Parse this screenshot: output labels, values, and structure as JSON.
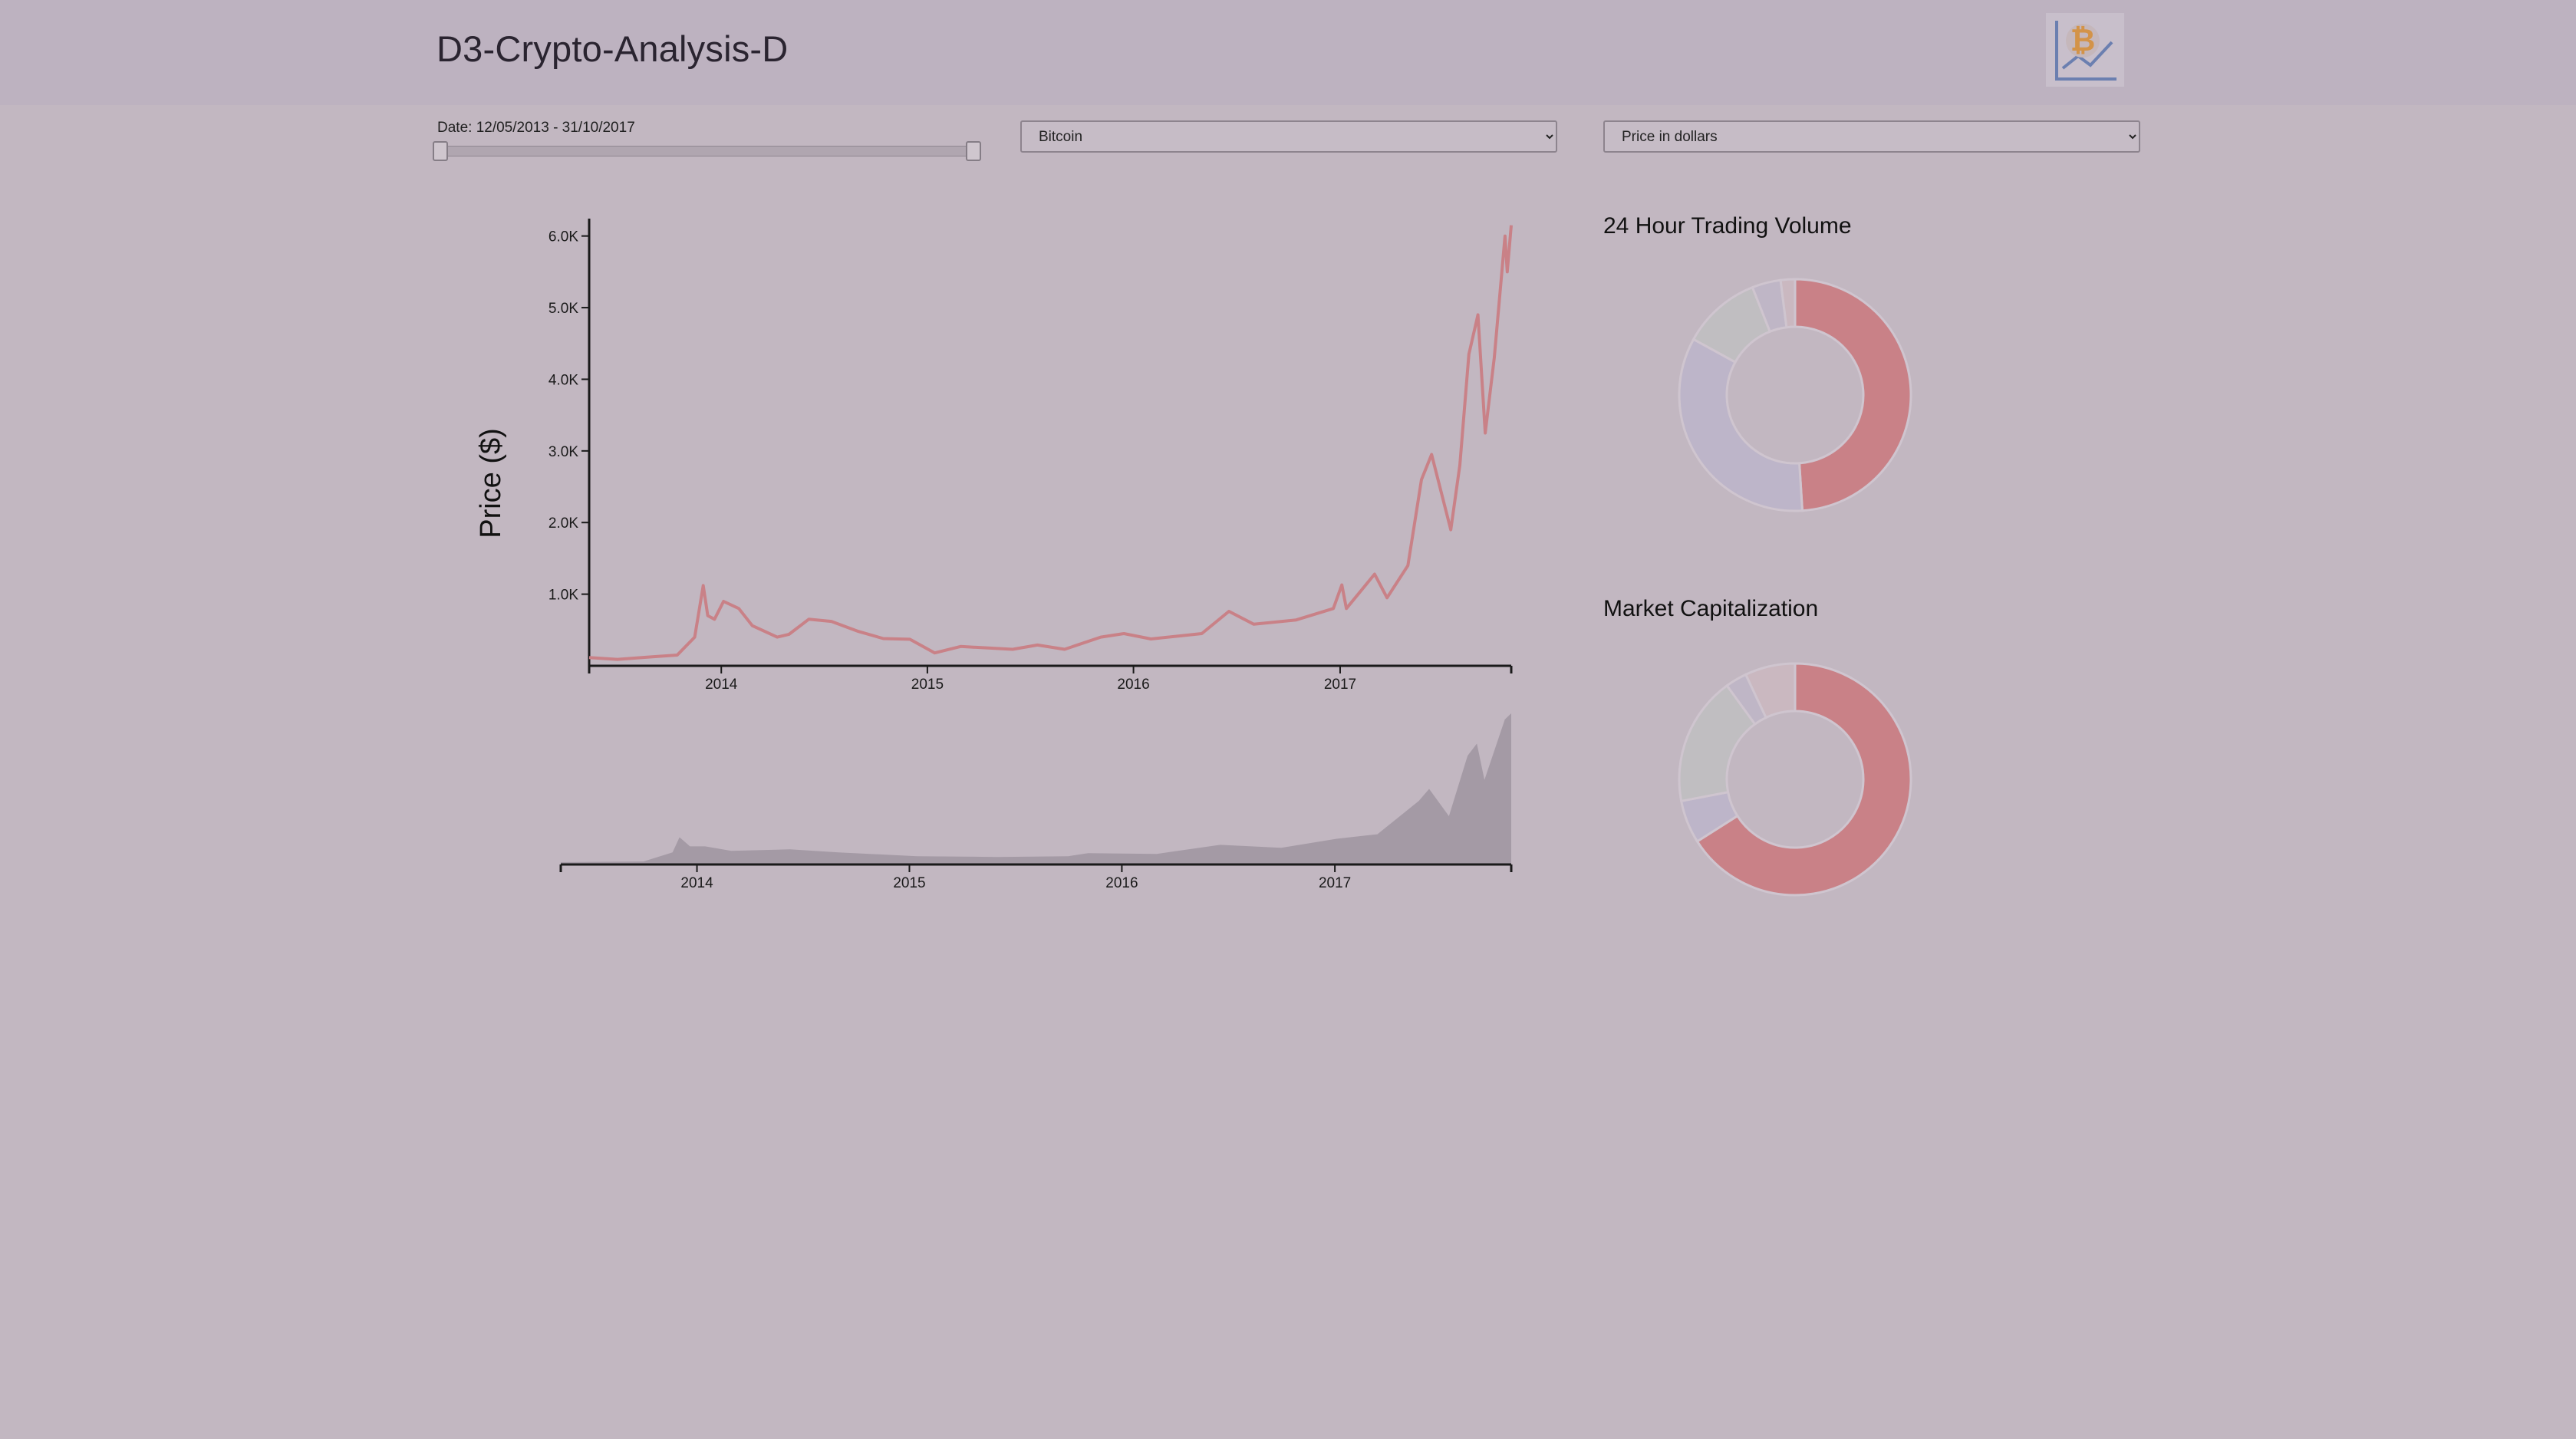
{
  "app": {
    "title": "D3-Crypto-Analysis-D"
  },
  "controls": {
    "date_label": "Date: 12/05/2013 - 31/10/2017",
    "slider_range": [
      0,
      1
    ],
    "coin_select": {
      "selected": "Bitcoin",
      "options": [
        "Bitcoin"
      ]
    },
    "metric_select": {
      "selected": "Price in dollars",
      "options": [
        "Price in dollars"
      ]
    }
  },
  "colors": {
    "price_line": "#c98187",
    "volume_area": "#a49aa5",
    "axis": "#1a1a1a",
    "donut": [
      "#c98187",
      "#bdb5c9",
      "#c0bec1",
      "#bfb6c6",
      "#cab8c0",
      "#d6c0bc"
    ]
  },
  "chart_data": [
    {
      "type": "line",
      "title": "",
      "xlabel": "",
      "ylabel": "Price ($)",
      "x_ticks": [
        "2014",
        "2015",
        "2016",
        "2017"
      ],
      "y_ticks": [
        "1.0K",
        "2.0K",
        "3.0K",
        "4.0K",
        "5.0K",
        "6.0K"
      ],
      "ylim": [
        0,
        6200
      ],
      "xlim": [
        "2013-05-12",
        "2017-10-31"
      ],
      "series": [
        {
          "values": [
            [
              "2013-05-12",
              115
            ],
            [
              "2013-07-01",
              90
            ],
            [
              "2013-09-01",
              125
            ],
            [
              "2013-10-15",
              150
            ],
            [
              "2013-11-15",
              400
            ],
            [
              "2013-11-30",
              1120
            ],
            [
              "2013-12-08",
              700
            ],
            [
              "2013-12-20",
              650
            ],
            [
              "2014-01-05",
              900
            ],
            [
              "2014-02-01",
              800
            ],
            [
              "2014-02-25",
              560
            ],
            [
              "2014-04-10",
              400
            ],
            [
              "2014-05-01",
              440
            ],
            [
              "2014-06-05",
              650
            ],
            [
              "2014-07-15",
              620
            ],
            [
              "2014-09-01",
              480
            ],
            [
              "2014-10-15",
              380
            ],
            [
              "2014-12-01",
              370
            ],
            [
              "2015-01-14",
              180
            ],
            [
              "2015-03-01",
              270
            ],
            [
              "2015-06-01",
              230
            ],
            [
              "2015-07-15",
              290
            ],
            [
              "2015-09-01",
              230
            ],
            [
              "2015-11-04",
              400
            ],
            [
              "2015-12-15",
              450
            ],
            [
              "2016-02-01",
              375
            ],
            [
              "2016-05-01",
              450
            ],
            [
              "2016-06-18",
              760
            ],
            [
              "2016-08-01",
              580
            ],
            [
              "2016-10-15",
              640
            ],
            [
              "2016-12-20",
              800
            ],
            [
              "2017-01-04",
              1130
            ],
            [
              "2017-01-12",
              800
            ],
            [
              "2017-03-03",
              1280
            ],
            [
              "2017-03-25",
              950
            ],
            [
              "2017-05-01",
              1400
            ],
            [
              "2017-05-25",
              2600
            ],
            [
              "2017-06-12",
              2950
            ],
            [
              "2017-07-16",
              1900
            ],
            [
              "2017-08-01",
              2800
            ],
            [
              "2017-08-17",
              4350
            ],
            [
              "2017-09-02",
              4900
            ],
            [
              "2017-09-15",
              3250
            ],
            [
              "2017-10-01",
              4300
            ],
            [
              "2017-10-20",
              6000
            ],
            [
              "2017-10-24",
              5500
            ],
            [
              "2017-10-31",
              6150
            ]
          ]
        }
      ]
    },
    {
      "type": "area",
      "title": "",
      "xlabel": "",
      "ylabel": "",
      "x_ticks": [
        "2014",
        "2015",
        "2016",
        "2017"
      ],
      "xlim": [
        "2013-05-12",
        "2017-10-31"
      ],
      "ylim": [
        0,
        1
      ],
      "series": [
        {
          "values": [
            [
              "2013-05-12",
              0.015
            ],
            [
              "2013-10-01",
              0.02
            ],
            [
              "2013-11-20",
              0.08
            ],
            [
              "2013-12-02",
              0.18
            ],
            [
              "2013-12-20",
              0.12
            ],
            [
              "2014-01-15",
              0.12
            ],
            [
              "2014-03-01",
              0.09
            ],
            [
              "2014-06-10",
              0.1
            ],
            [
              "2014-09-01",
              0.08
            ],
            [
              "2015-01-14",
              0.055
            ],
            [
              "2015-06-01",
              0.05
            ],
            [
              "2015-10-01",
              0.055
            ],
            [
              "2015-11-04",
              0.075
            ],
            [
              "2016-03-01",
              0.07
            ],
            [
              "2016-06-18",
              0.13
            ],
            [
              "2016-10-01",
              0.11
            ],
            [
              "2017-01-04",
              0.17
            ],
            [
              "2017-03-15",
              0.2
            ],
            [
              "2017-05-25",
              0.42
            ],
            [
              "2017-06-12",
              0.5
            ],
            [
              "2017-07-16",
              0.32
            ],
            [
              "2017-08-17",
              0.72
            ],
            [
              "2017-09-02",
              0.8
            ],
            [
              "2017-09-15",
              0.56
            ],
            [
              "2017-10-20",
              0.96
            ],
            [
              "2017-10-31",
              1.0
            ]
          ]
        }
      ]
    },
    {
      "type": "pie",
      "title": "24 Hour Trading Volume",
      "values": [
        49,
        34,
        11,
        4,
        2
      ]
    },
    {
      "type": "pie",
      "title": "Market Capitalization",
      "values": [
        66,
        6,
        18,
        3,
        7
      ]
    }
  ]
}
